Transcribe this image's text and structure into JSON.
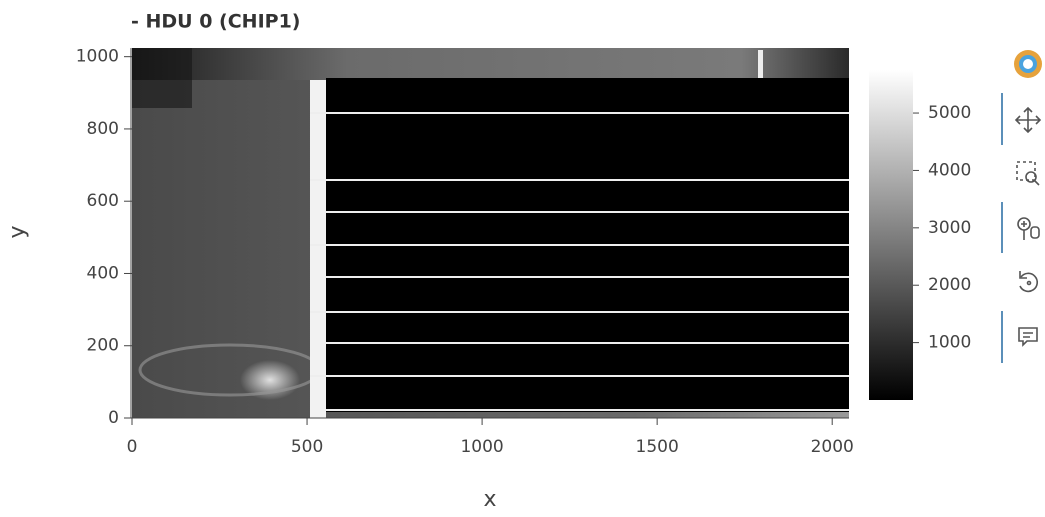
{
  "chart_data": {
    "type": "image",
    "title": "- HDU 0 (CHIP1)",
    "x_label": "x",
    "y_label": "y",
    "xlim": [
      0,
      2048
    ],
    "ylim": [
      0,
      1024
    ],
    "xticks": [
      0,
      500,
      1000,
      1500,
      2000
    ],
    "yticks": [
      0,
      200,
      400,
      600,
      800,
      1000
    ],
    "colorbar": {
      "colormap": "gray",
      "clim": [
        0,
        5750
      ],
      "ticks": [
        1000,
        2000,
        3000,
        4000,
        5000
      ]
    }
  }
}
